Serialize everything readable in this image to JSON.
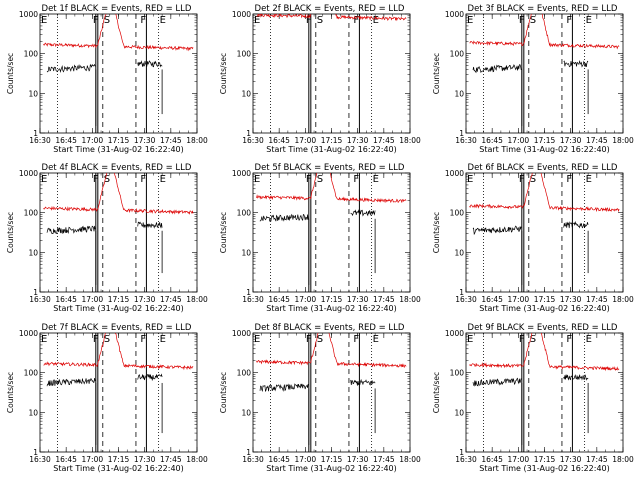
{
  "chart_data": {
    "type": "line",
    "layout_desc": "3x3 grid of panels, one per detector",
    "x_ticks": [
      "16:30",
      "16:45",
      "17:00",
      "17:15",
      "17:30",
      "17:45",
      "18:00"
    ],
    "x_range": [
      "16:30",
      "18:00"
    ],
    "y_scale": "log",
    "y_range": [
      1,
      1000
    ],
    "y_ticks": [
      "1",
      "10",
      "100",
      "1000"
    ],
    "ylabel": "Counts/sec",
    "xlabel": "Start Time (31-Aug-02 16:22:40)",
    "series_colors": {
      "events": "#000000",
      "lld": "#dd0000"
    },
    "panels": [
      {
        "title": "Det 1f BLACK = Events, RED = LLD",
        "labels": {
          "E1": "E",
          "F1": "F",
          "S": "S",
          "F2": "F",
          "E2": "E"
        },
        "events_level": 40,
        "lld_level": 170,
        "red_spike": true
      },
      {
        "title": "Det 2f BLACK = Events, RED = LLD",
        "labels": {
          "E1": "E",
          "F1": "F",
          "S": "S",
          "F2": "F",
          "E2": "E"
        },
        "events_level": null,
        "lld_level": 950,
        "red_spike": true
      },
      {
        "title": "Det 3f BLACK = Events, RED = LLD",
        "labels": {
          "E1": "E",
          "F1": "F",
          "S": "S",
          "F2": "F",
          "E2": "E"
        },
        "events_level": 40,
        "lld_level": 190,
        "red_spike": true
      },
      {
        "title": "Det 4f BLACK = Events, RED = LLD",
        "labels": {
          "E1": "E",
          "F1": "F",
          "S": "S",
          "F2": "F",
          "E2": "E"
        },
        "events_level": 35,
        "lld_level": 130,
        "red_spike": true
      },
      {
        "title": "Det 5f BLACK = Events, RED = LLD",
        "labels": {
          "E1": "E",
          "F1": "F",
          "S": "S",
          "F2": "F",
          "E2": "E"
        },
        "events_level": 70,
        "lld_level": 250,
        "red_spike": true
      },
      {
        "title": "Det 6f BLACK = Events, RED = LLD",
        "labels": {
          "E1": "E",
          "F1": "F",
          "S": "S",
          "F2": "F",
          "E2": "E"
        },
        "events_level": 35,
        "lld_level": 150,
        "red_spike": true
      },
      {
        "title": "Det 7f BLACK = Events, RED = LLD",
        "labels": {
          "E1": "E",
          "F1": "F",
          "S": "S",
          "F2": "F",
          "E2": "E"
        },
        "events_level": 55,
        "lld_level": 170,
        "red_spike": true
      },
      {
        "title": "Det 8f BLACK = Events, RED = LLD",
        "labels": {
          "E1": "E",
          "F1": "F",
          "S": "S",
          "F2": "F",
          "E2": "E"
        },
        "events_level": 40,
        "lld_level": 190,
        "red_spike": true
      },
      {
        "title": "Det 9f BLACK = Events, RED = LLD",
        "labels": {
          "E1": "E",
          "F1": "F",
          "S": "S",
          "F2": "F",
          "E2": "E"
        },
        "events_level": 55,
        "lld_level": 160,
        "red_spike": true
      }
    ],
    "annotation_times": {
      "E1_dotted": "16:40",
      "F1_solid": "17:02",
      "S_dashed": "17:06",
      "dashed2": "17:25",
      "F2_solid": "17:31",
      "E2_dotted": "17:38"
    }
  }
}
